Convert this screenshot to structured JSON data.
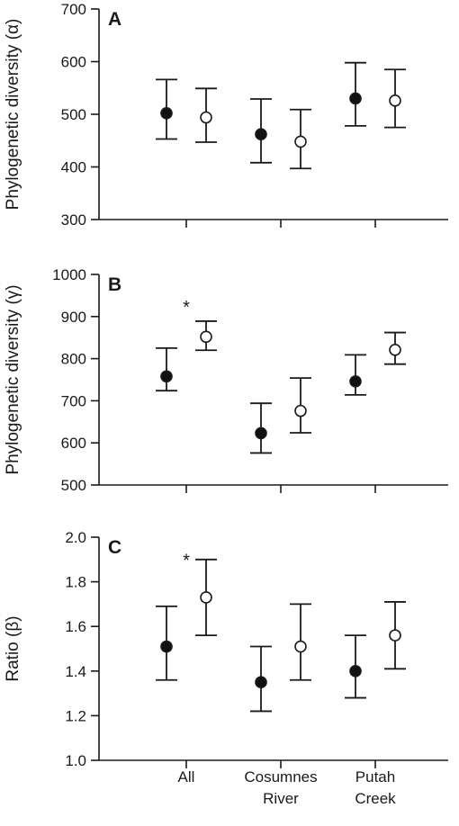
{
  "chart_data": [
    {
      "type": "scatter",
      "panel_label": "A",
      "ylabel": "Phylogenetic diversity (α)",
      "ylim": [
        300,
        700
      ],
      "yticks": [
        300,
        400,
        500,
        600,
        700
      ],
      "categories": [
        "All",
        "Cosumnes River",
        "Putah Creek"
      ],
      "series": [
        {
          "style": "filled",
          "points": [
            {
              "cat": 0,
              "value": 502,
              "lower": 453,
              "upper": 566
            },
            {
              "cat": 1,
              "value": 462,
              "lower": 408,
              "upper": 529
            },
            {
              "cat": 2,
              "value": 530,
              "lower": 478,
              "upper": 598
            }
          ]
        },
        {
          "style": "open",
          "points": [
            {
              "cat": 0,
              "value": 494,
              "lower": 447,
              "upper": 549
            },
            {
              "cat": 1,
              "value": 448,
              "lower": 397,
              "upper": 509
            },
            {
              "cat": 2,
              "value": 526,
              "lower": 475,
              "upper": 585
            }
          ]
        }
      ],
      "annotations": []
    },
    {
      "type": "scatter",
      "panel_label": "B",
      "ylabel": "Phylogenetic diversity (γ)",
      "ylim": [
        500,
        1000
      ],
      "yticks": [
        500,
        600,
        700,
        800,
        900,
        1000
      ],
      "categories": [
        "All",
        "Cosumnes River",
        "Putah Creek"
      ],
      "series": [
        {
          "style": "filled",
          "points": [
            {
              "cat": 0,
              "value": 758,
              "lower": 724,
              "upper": 825
            },
            {
              "cat": 1,
              "value": 623,
              "lower": 576,
              "upper": 694
            },
            {
              "cat": 2,
              "value": 746,
              "lower": 714,
              "upper": 809
            }
          ]
        },
        {
          "style": "open",
          "points": [
            {
              "cat": 0,
              "value": 852,
              "lower": 820,
              "upper": 889
            },
            {
              "cat": 1,
              "value": 676,
              "lower": 624,
              "upper": 754
            },
            {
              "cat": 2,
              "value": 821,
              "lower": 787,
              "upper": 862
            }
          ]
        }
      ],
      "annotations": [
        {
          "text": "*",
          "cat": 0,
          "value": 930
        }
      ]
    },
    {
      "type": "scatter",
      "panel_label": "C",
      "ylabel": "Ratio (β)",
      "ylim": [
        1.0,
        2.0
      ],
      "yticks": [
        "1.0",
        "1.2",
        "1.4",
        "1.6",
        "1.8",
        "2.0"
      ],
      "categories": [
        "All",
        "Cosumnes River",
        "Putah Creek"
      ],
      "series": [
        {
          "style": "filled",
          "points": [
            {
              "cat": 0,
              "value": 1.51,
              "lower": 1.36,
              "upper": 1.69
            },
            {
              "cat": 1,
              "value": 1.35,
              "lower": 1.22,
              "upper": 1.51
            },
            {
              "cat": 2,
              "value": 1.4,
              "lower": 1.28,
              "upper": 1.56
            }
          ]
        },
        {
          "style": "open",
          "points": [
            {
              "cat": 0,
              "value": 1.73,
              "lower": 1.56,
              "upper": 1.9
            },
            {
              "cat": 1,
              "value": 1.51,
              "lower": 1.36,
              "upper": 1.7
            },
            {
              "cat": 2,
              "value": 1.56,
              "lower": 1.41,
              "upper": 1.71
            }
          ]
        }
      ],
      "annotations": [
        {
          "text": "*",
          "cat": 0,
          "value": 1.91
        }
      ]
    }
  ],
  "x_axis": {
    "category_labels": [
      [
        "All"
      ],
      [
        "Cosumnes",
        "River"
      ],
      [
        "Putah",
        "Creek"
      ]
    ]
  },
  "colors": {
    "ink": "#1a1a1a",
    "open_fill": "#ffffff",
    "filled_fill": "#111111"
  }
}
